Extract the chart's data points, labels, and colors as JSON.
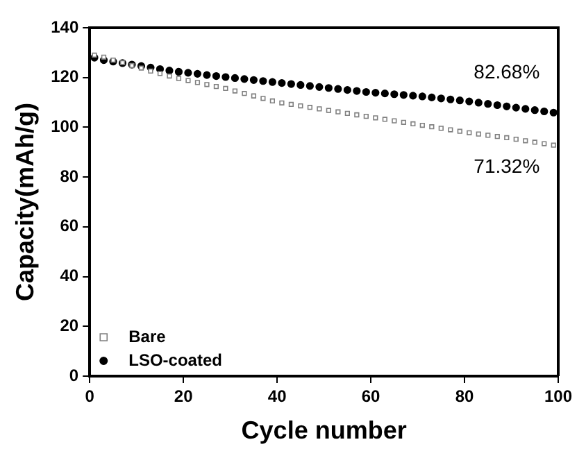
{
  "chart_data": {
    "type": "scatter",
    "xlabel": "Cycle number",
    "ylabel": "Capacity(mAh/g)",
    "xlim": [
      0,
      100
    ],
    "xticks": [
      0,
      20,
      40,
      60,
      80,
      100
    ],
    "ylim": [
      0,
      140
    ],
    "yticks": [
      0,
      20,
      40,
      60,
      80,
      100,
      120,
      140
    ],
    "grid": false,
    "legend": "bottom left",
    "x": [
      1,
      3,
      5,
      7,
      9,
      11,
      13,
      15,
      17,
      19,
      21,
      23,
      25,
      27,
      29,
      31,
      33,
      35,
      37,
      39,
      41,
      43,
      45,
      47,
      49,
      51,
      53,
      55,
      57,
      59,
      61,
      63,
      65,
      67,
      69,
      71,
      73,
      75,
      77,
      79,
      81,
      83,
      85,
      87,
      89,
      91,
      93,
      95,
      97,
      99
    ],
    "series": [
      {
        "name": "Bare",
        "color": "#808080",
        "marker": "square",
        "values": [
          129,
          128.2,
          127,
          126,
          124.8,
          123.8,
          122.6,
          121.6,
          120.6,
          119.6,
          118.8,
          118,
          117.2,
          116.4,
          115.6,
          114.6,
          113.6,
          112.6,
          111.6,
          110.6,
          109.8,
          109.2,
          108.6,
          108,
          107.4,
          106.8,
          106.2,
          105.6,
          105,
          104.4,
          103.8,
          103.2,
          102.6,
          102,
          101.4,
          100.8,
          100.2,
          99.6,
          99,
          98.4,
          97.8,
          97.3,
          96.8,
          96.3,
          95.8,
          95.2,
          94.6,
          94,
          93.4,
          92.8
        ]
      },
      {
        "name": "LSO-coated",
        "color": "#000000",
        "marker": "circle",
        "values": [
          128,
          127,
          126.4,
          125.8,
          125.2,
          124.6,
          124,
          123.4,
          122.8,
          122.3,
          121.9,
          121.5,
          121,
          120.6,
          120.2,
          119.8,
          119.4,
          119,
          118.6,
          118.2,
          117.8,
          117.4,
          117,
          116.6,
          116.2,
          115.8,
          115.4,
          115,
          114.6,
          114.2,
          113.9,
          113.6,
          113.3,
          113,
          112.7,
          112.4,
          112,
          111.6,
          111.2,
          110.8,
          110.4,
          109.9,
          109.4,
          108.9,
          108.4,
          107.9,
          107.4,
          106.9,
          106.4,
          105.9
        ]
      }
    ],
    "annotations": [
      "82.68%",
      "71.32%"
    ]
  }
}
